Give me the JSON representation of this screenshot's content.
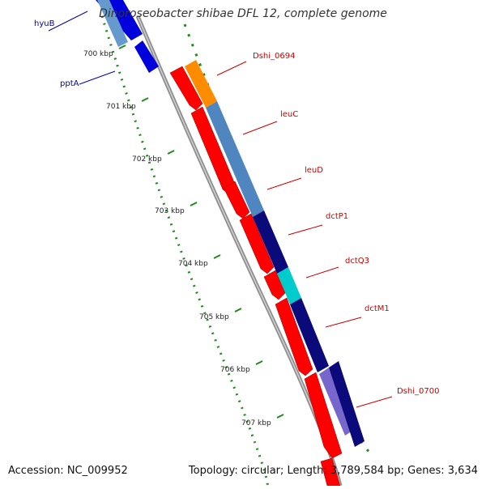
{
  "title": "Dinoroseobacter shibae DFL 12, complete genome",
  "footer": {
    "accession": "Accession: NC_009952",
    "summary": "Topology: circular; Length: 3,789,584 bp; Genes: 3,634"
  },
  "colors": {
    "background": "#ffffff",
    "backbone": "#8e8e8e",
    "ticks": "#1f8a1f",
    "label_red": "#cc0000",
    "label_blue": "#000088"
  },
  "ticks": [
    {
      "label": "700 kbp"
    },
    {
      "label": "701 kbp"
    },
    {
      "label": "702 kbp"
    },
    {
      "label": "703 kbp"
    },
    {
      "label": "704 kbp"
    },
    {
      "label": "705 kbp"
    },
    {
      "label": "706 kbp"
    },
    {
      "label": "707 kbp"
    }
  ],
  "genes_left": [
    {
      "label": "hyuB",
      "color": "#0000aa"
    },
    {
      "label": "pptA",
      "color": "#0000aa"
    }
  ],
  "genes_right": [
    {
      "label": "Dshi_0694",
      "color": "#cc0000"
    },
    {
      "label": "leuC",
      "color": "#cc0000"
    },
    {
      "label": "leuD",
      "color": "#cc0000"
    },
    {
      "label": "dctP1",
      "color": "#cc0000"
    },
    {
      "label": "dctQ3",
      "color": "#cc0000"
    },
    {
      "label": "dctM1",
      "color": "#cc0000"
    },
    {
      "label": "Dshi_0700",
      "color": "#cc0000"
    }
  ]
}
